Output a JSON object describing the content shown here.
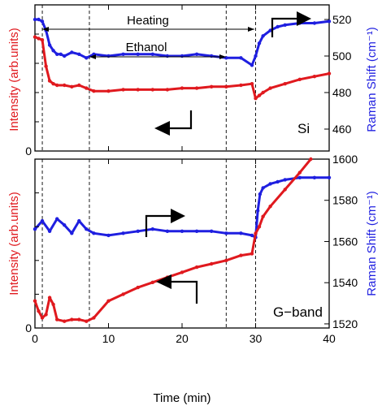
{
  "chart_data": [
    {
      "type": "scatter",
      "panel": "Si",
      "panel_label": "Si",
      "xlim": [
        0,
        40
      ],
      "x_ticks": [
        0,
        10,
        20,
        30,
        40
      ],
      "grid": false,
      "left_axis": {
        "label": "Intensity (arb.units)",
        "ticks": [
          0
        ],
        "tick_labels": [
          "0"
        ],
        "color": "#e0191e"
      },
      "right_axis": {
        "label": "Raman Shift (cm⁻¹)",
        "ylim": [
          448,
          528
        ],
        "ticks": [
          460,
          480,
          500,
          520
        ],
        "tick_labels": [
          "460",
          "480",
          "500",
          "520"
        ],
        "color": "#1f1fe0"
      },
      "left_ylim": [
        0,
        100
      ],
      "vlines": [
        1,
        7.4,
        26,
        30
      ],
      "annotations": [
        {
          "text": "Heating",
          "x_from": 1,
          "x_to": 30
        },
        {
          "text": "Ethanol",
          "x_from": 7.4,
          "x_to": 26
        }
      ],
      "series": [
        {
          "axis": "right",
          "color": "#1f1fe0",
          "x": [
            0,
            0.5,
            1,
            1.5,
            2,
            2.5,
            3,
            3.5,
            4,
            5,
            6,
            7,
            8,
            10,
            12,
            14,
            16,
            18,
            20,
            22,
            24,
            26,
            28,
            29.5,
            30,
            30.5,
            31,
            32,
            33,
            34,
            36,
            38,
            40
          ],
          "y": [
            520,
            520,
            519,
            514,
            506,
            503,
            501,
            501,
            500,
            502,
            501,
            499,
            501,
            500,
            501,
            501,
            501,
            500,
            500,
            501,
            500,
            499,
            499,
            495,
            500,
            507,
            511,
            514,
            516,
            517,
            518,
            518,
            519
          ]
        },
        {
          "axis": "left",
          "color": "#e0191e",
          "x": [
            0,
            0.5,
            1,
            1.5,
            2,
            2.5,
            3,
            4,
            5,
            6,
            7,
            8,
            10,
            12,
            14,
            16,
            18,
            20,
            22,
            24,
            26,
            28,
            29.5,
            30,
            30.5,
            31,
            32,
            34,
            36,
            38,
            40
          ],
          "y": [
            78,
            77,
            76,
            58,
            48,
            46,
            45,
            45,
            44,
            45,
            43,
            41,
            41,
            42,
            42,
            42,
            42,
            43,
            43,
            44,
            44,
            45,
            46,
            36,
            38,
            40,
            43,
            46,
            49,
            51,
            53
          ]
        }
      ]
    },
    {
      "type": "scatter",
      "panel": "G-band",
      "panel_label": "G−band",
      "xlim": [
        0,
        40
      ],
      "x_ticks": [
        0,
        10,
        20,
        30,
        40
      ],
      "x_tick_labels": [
        "0",
        "10",
        "20",
        "30",
        "40"
      ],
      "xlabel": "Time (min)",
      "grid": false,
      "left_axis": {
        "label": "Intensity (arb.units)",
        "ticks": [
          0
        ],
        "tick_labels": [
          "0"
        ],
        "color": "#e0191e"
      },
      "right_axis": {
        "label": "Raman Shift (cm⁻¹)",
        "ylim": [
          1518,
          1600
        ],
        "ticks": [
          1520,
          1540,
          1560,
          1580,
          1600
        ],
        "tick_labels": [
          "1520",
          "1540",
          "1560",
          "1580",
          "1600"
        ],
        "color": "#1f1fe0"
      },
      "left_ylim": [
        0,
        100
      ],
      "vlines": [
        1,
        7.4,
        26,
        30
      ],
      "series": [
        {
          "axis": "right",
          "color": "#1f1fe0",
          "x": [
            0,
            1,
            2,
            3,
            4,
            5,
            6,
            7,
            8,
            10,
            12,
            14,
            16,
            18,
            20,
            22,
            24,
            26,
            28,
            29.5,
            30,
            30.3,
            30.6,
            31,
            32,
            33,
            34,
            36,
            38,
            40
          ],
          "y": [
            1566,
            1570,
            1565,
            1571,
            1568,
            1564,
            1570,
            1566,
            1564,
            1563,
            1564,
            1565,
            1566,
            1565,
            1565,
            1565,
            1565,
            1564,
            1564,
            1563,
            1562,
            1575,
            1583,
            1586,
            1588,
            1589,
            1590,
            1591,
            1591,
            1591
          ]
        },
        {
          "axis": "left",
          "color": "#e0191e",
          "x": [
            0,
            0.5,
            1,
            1.5,
            2,
            2.5,
            3,
            4,
            5,
            6,
            7,
            8,
            10,
            12,
            14,
            16,
            18,
            20,
            22,
            24,
            26,
            28,
            29.5,
            30,
            30.5,
            31,
            32,
            34,
            36,
            37.5
          ],
          "y": [
            16,
            10,
            6,
            8,
            18,
            14,
            5,
            4,
            5,
            5,
            4,
            6,
            16,
            20,
            24,
            27,
            30,
            33,
            36,
            38,
            40,
            43,
            44,
            56,
            60,
            66,
            72,
            82,
            92,
            100
          ]
        }
      ]
    }
  ]
}
